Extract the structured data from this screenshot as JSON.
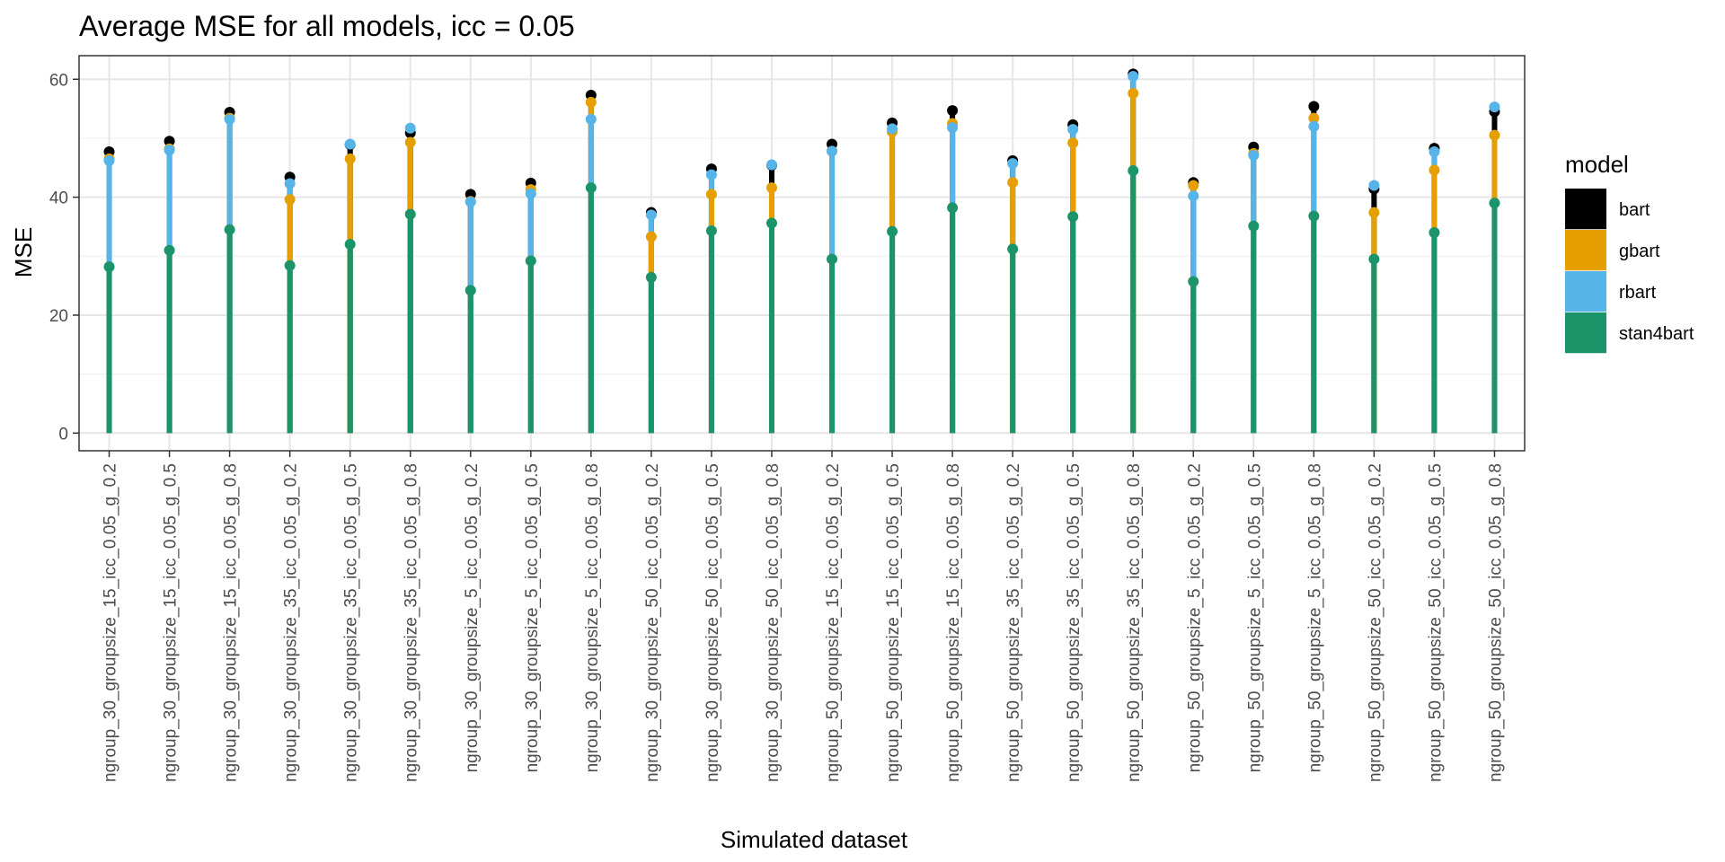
{
  "chart_data": {
    "type": "lollipop",
    "title": "Average MSE for all models, icc = 0.05",
    "xlabel": "Simulated dataset",
    "ylabel": "MSE",
    "ylim": [
      -3,
      64
    ],
    "yticks": [
      0,
      20,
      40,
      60
    ],
    "grid": true,
    "legend": {
      "title": "model",
      "position": "right"
    },
    "categories": [
      "ngroup_30_groupsize_15_icc_0.05_g_0.2",
      "ngroup_30_groupsize_15_icc_0.05_g_0.5",
      "ngroup_30_groupsize_15_icc_0.05_g_0.8",
      "ngroup_30_groupsize_35_icc_0.05_g_0.2",
      "ngroup_30_groupsize_35_icc_0.05_g_0.5",
      "ngroup_30_groupsize_35_icc_0.05_g_0.8",
      "ngroup_30_groupsize_5_icc_0.05_g_0.2",
      "ngroup_30_groupsize_5_icc_0.05_g_0.5",
      "ngroup_30_groupsize_5_icc_0.05_g_0.8",
      "ngroup_30_groupsize_50_icc_0.05_g_0.2",
      "ngroup_30_groupsize_50_icc_0.05_g_0.5",
      "ngroup_30_groupsize_50_icc_0.05_g_0.8",
      "ngroup_50_groupsize_15_icc_0.05_g_0.2",
      "ngroup_50_groupsize_15_icc_0.05_g_0.5",
      "ngroup_50_groupsize_15_icc_0.05_g_0.8",
      "ngroup_50_groupsize_35_icc_0.05_g_0.2",
      "ngroup_50_groupsize_35_icc_0.05_g_0.5",
      "ngroup_50_groupsize_35_icc_0.05_g_0.8",
      "ngroup_50_groupsize_5_icc_0.05_g_0.2",
      "ngroup_50_groupsize_5_icc_0.05_g_0.5",
      "ngroup_50_groupsize_5_icc_0.05_g_0.8",
      "ngroup_50_groupsize_50_icc_0.05_g_0.2",
      "ngroup_50_groupsize_50_icc_0.05_g_0.5",
      "ngroup_50_groupsize_50_icc_0.05_g_0.8"
    ],
    "series": [
      {
        "name": "bart",
        "color": "#000000",
        "values": [
          47.7,
          49.5,
          54.4,
          43.4,
          48.9,
          50.9,
          40.5,
          42.4,
          57.3,
          37.4,
          44.8,
          45.4,
          49.0,
          52.6,
          54.7,
          46.2,
          52.3,
          60.9,
          42.5,
          48.5,
          55.4,
          41.4,
          48.3,
          54.5
        ]
      },
      {
        "name": "gbart",
        "color": "#E69F00",
        "values": [
          46.5,
          48.2,
          53.4,
          39.6,
          46.5,
          49.3,
          39.3,
          41.3,
          56.1,
          33.3,
          40.5,
          41.6,
          47.8,
          51.1,
          52.5,
          42.5,
          49.2,
          57.6,
          42.0,
          47.4,
          53.4,
          37.4,
          44.6,
          50.5
        ]
      },
      {
        "name": "rbart",
        "color": "#56B4E9",
        "values": [
          46.2,
          48.0,
          53.2,
          42.3,
          49.0,
          51.7,
          39.2,
          40.6,
          53.2,
          37.0,
          43.8,
          45.5,
          47.8,
          51.6,
          51.8,
          45.7,
          51.5,
          60.5,
          40.2,
          47.1,
          52.0,
          42.0,
          47.7,
          55.3
        ]
      },
      {
        "name": "stan4bart",
        "color": "#1A9468",
        "values": [
          28.2,
          31.0,
          34.5,
          28.4,
          32.0,
          37.1,
          24.2,
          29.2,
          41.6,
          26.4,
          34.3,
          35.6,
          29.5,
          34.2,
          38.2,
          31.2,
          36.7,
          44.5,
          25.7,
          35.1,
          36.8,
          29.5,
          34.0,
          39.0
        ]
      }
    ]
  }
}
